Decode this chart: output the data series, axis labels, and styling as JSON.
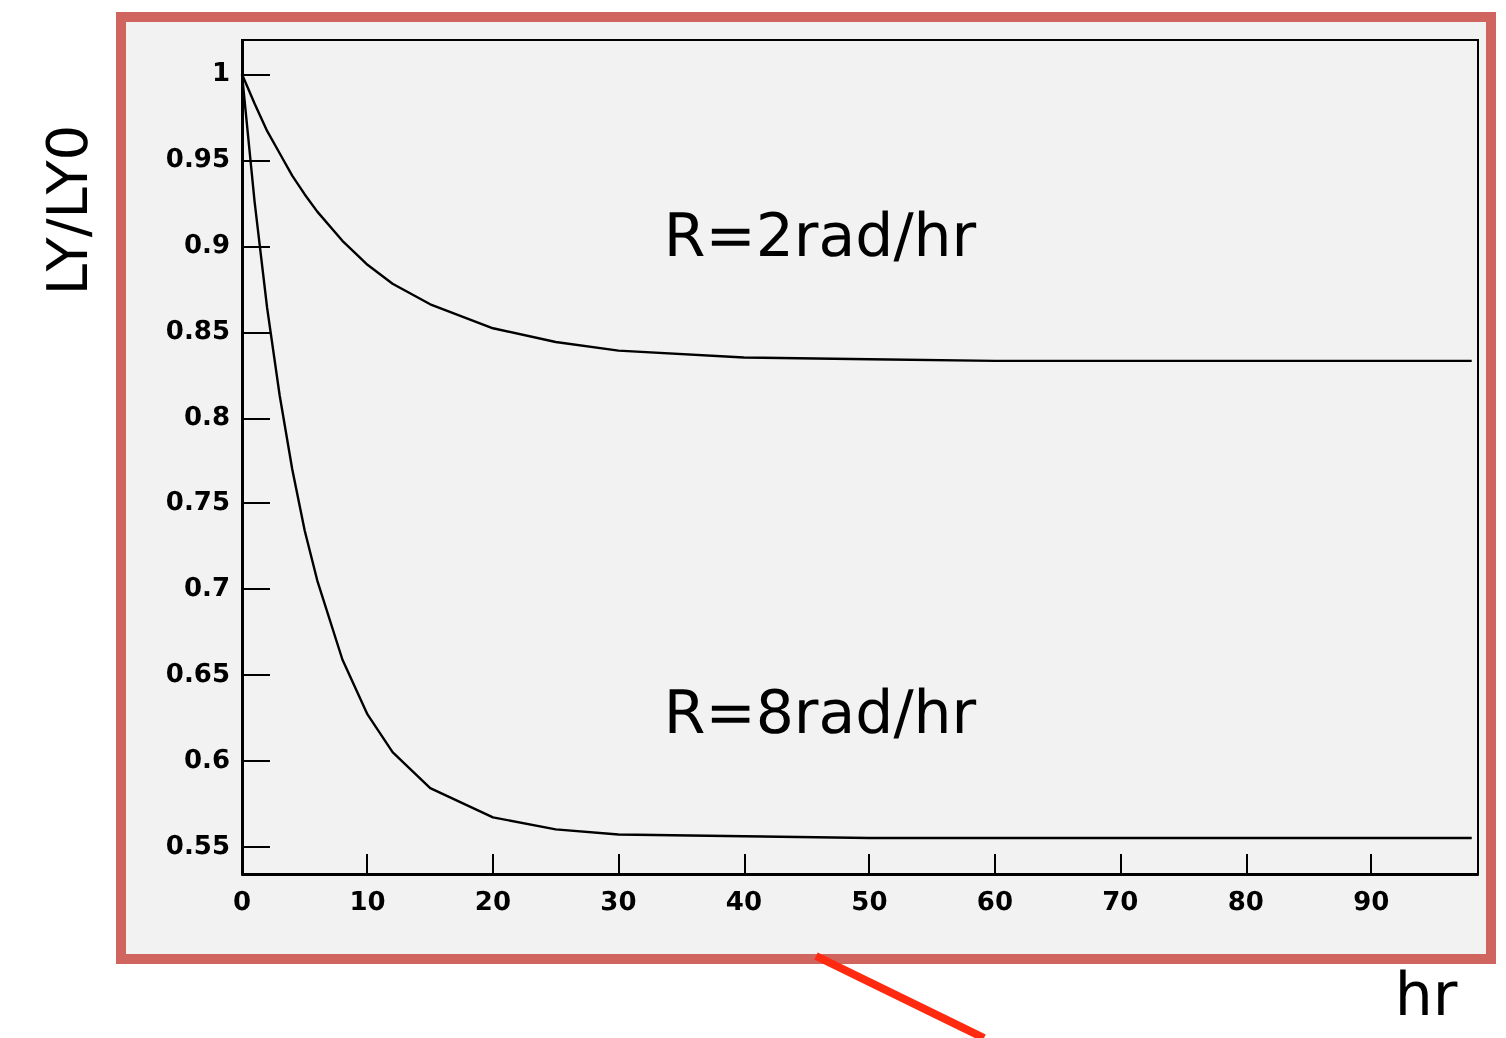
{
  "chart_data": {
    "type": "line",
    "xlabel": "hr",
    "ylabel": "LY/LY0",
    "x": [
      0,
      1,
      2,
      3,
      4,
      5,
      6,
      8,
      10,
      12,
      15,
      20,
      25,
      30,
      40,
      50,
      60,
      70,
      80,
      90,
      98
    ],
    "series": [
      {
        "name": "R=2rad/hr",
        "color": "#000000",
        "values": [
          1,
          0.983,
          0.967,
          0.954,
          0.941,
          0.93,
          0.92,
          0.903,
          0.889,
          0.878,
          0.866,
          0.852,
          0.844,
          0.839,
          0.835,
          0.834,
          0.833,
          0.833,
          0.833,
          0.833,
          0.833
        ]
      },
      {
        "name": "R=8rad/hr",
        "color": "#000000",
        "values": [
          1,
          0.926,
          0.864,
          0.813,
          0.77,
          0.734,
          0.705,
          0.659,
          0.627,
          0.605,
          0.584,
          0.567,
          0.56,
          0.557,
          0.556,
          0.555,
          0.555,
          0.555,
          0.555,
          0.555,
          0.555
        ]
      }
    ],
    "xlim": [
      0,
      98.5
    ],
    "xticks": [
      0,
      10,
      20,
      30,
      40,
      50,
      60,
      70,
      80,
      90
    ],
    "ylim": [
      0.534,
      1.02
    ],
    "yticks": [
      0.55,
      0.6,
      0.65,
      0.7,
      0.75,
      0.8,
      0.85,
      0.9,
      0.95,
      1
    ],
    "grid": false,
    "legend": false,
    "marker": "none",
    "line_style": "solid"
  }
}
